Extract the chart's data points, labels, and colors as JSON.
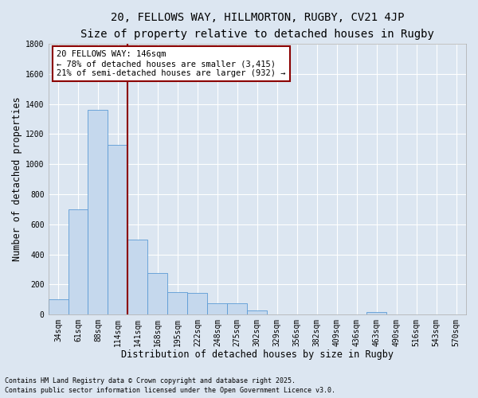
{
  "title1": "20, FELLOWS WAY, HILLMORTON, RUGBY, CV21 4JP",
  "title2": "Size of property relative to detached houses in Rugby",
  "xlabel": "Distribution of detached houses by size in Rugby",
  "ylabel": "Number of detached properties",
  "bar_color": "#c5d8ed",
  "bar_edge_color": "#5b9bd5",
  "bg_color": "#dce6f1",
  "grid_color": "#ffffff",
  "bin_labels": [
    "34sqm",
    "61sqm",
    "88sqm",
    "114sqm",
    "141sqm",
    "168sqm",
    "195sqm",
    "222sqm",
    "248sqm",
    "275sqm",
    "302sqm",
    "329sqm",
    "356sqm",
    "382sqm",
    "409sqm",
    "436sqm",
    "463sqm",
    "490sqm",
    "516sqm",
    "543sqm",
    "570sqm"
  ],
  "bar_heights": [
    100,
    700,
    1360,
    1130,
    500,
    275,
    150,
    145,
    75,
    75,
    30,
    0,
    0,
    0,
    0,
    0,
    18,
    0,
    0,
    0,
    0
  ],
  "vline_x_data": 3.5,
  "vline_color": "#8b0000",
  "annotation_text": "20 FELLOWS WAY: 146sqm\n← 78% of detached houses are smaller (3,415)\n21% of semi-detached houses are larger (932) →",
  "annotation_box_color": "#ffffff",
  "annotation_border_color": "#8b0000",
  "ylim": [
    0,
    1800
  ],
  "yticks": [
    0,
    200,
    400,
    600,
    800,
    1000,
    1200,
    1400,
    1600,
    1800
  ],
  "footnote1": "Contains HM Land Registry data © Crown copyright and database right 2025.",
  "footnote2": "Contains public sector information licensed under the Open Government Licence v3.0.",
  "title1_fontsize": 10,
  "title2_fontsize": 9,
  "xlabel_fontsize": 8.5,
  "ylabel_fontsize": 8.5,
  "tick_fontsize": 7,
  "annotation_fontsize": 7.5,
  "footnote_fontsize": 6
}
